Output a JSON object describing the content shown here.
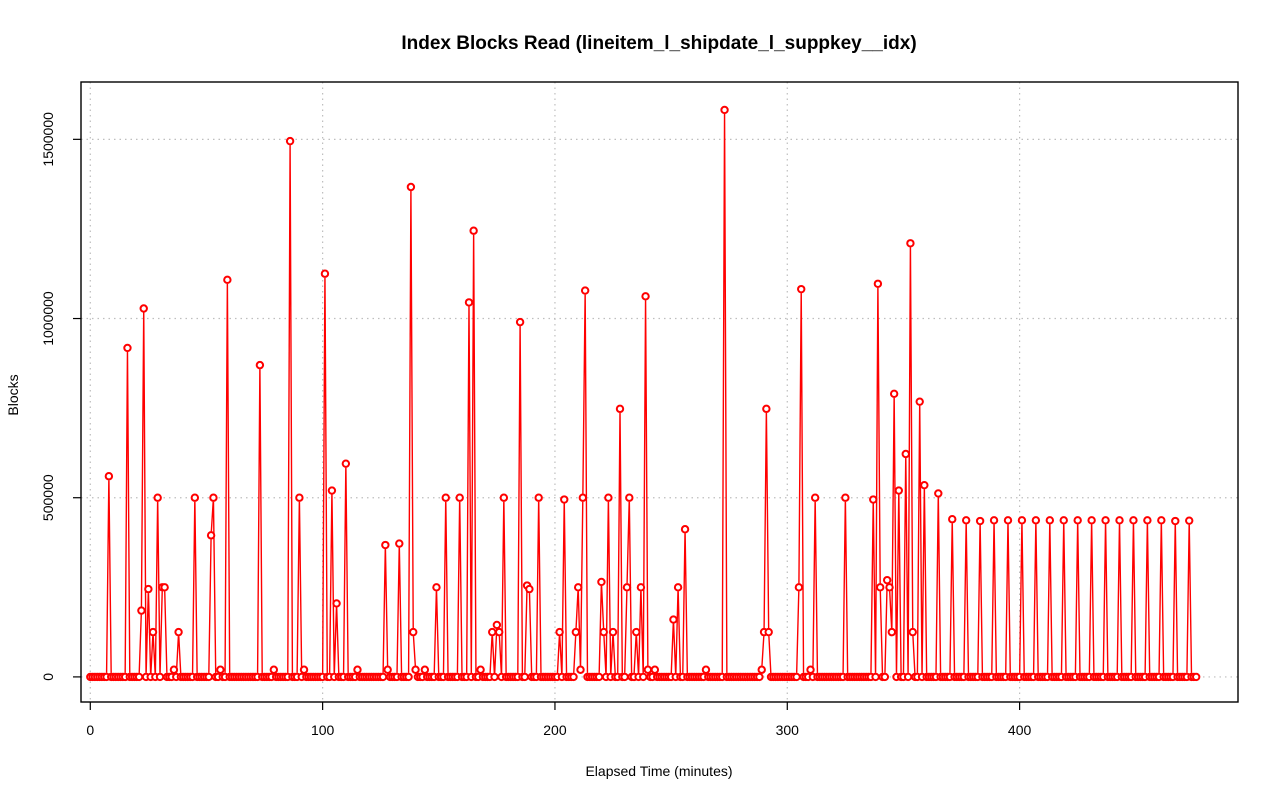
{
  "chart_data": {
    "type": "line",
    "title": "Index Blocks Read (lineitem_l_shipdate_l_suppkey__idx)",
    "xlabel": "Elapsed Time (minutes)",
    "ylabel": "Blocks",
    "xlim": [
      -4,
      494
    ],
    "ylim": [
      -70000,
      1660000
    ],
    "xticks": [
      0,
      100,
      200,
      300,
      400
    ],
    "yticks": [
      0,
      500000,
      1000000,
      1500000
    ],
    "grid": true,
    "line_color": "#ff0000",
    "peaks": [
      [
        8,
        560000
      ],
      [
        16,
        918000
      ],
      [
        22,
        185000
      ],
      [
        23,
        1028000
      ],
      [
        25,
        245000
      ],
      [
        27,
        125000
      ],
      [
        29,
        500000
      ],
      [
        31,
        250000
      ],
      [
        32,
        250000
      ],
      [
        36,
        20000
      ],
      [
        38,
        125000
      ],
      [
        45,
        500000
      ],
      [
        52,
        395000
      ],
      [
        53,
        500000
      ],
      [
        56,
        20000
      ],
      [
        59,
        1108000
      ],
      [
        73,
        870000
      ],
      [
        79,
        20000
      ],
      [
        86,
        1495000
      ],
      [
        90,
        500000
      ],
      [
        92,
        20000
      ],
      [
        101,
        1125000
      ],
      [
        104,
        520000
      ],
      [
        106,
        205000
      ],
      [
        110,
        595000
      ],
      [
        115,
        20000
      ],
      [
        127,
        368000
      ],
      [
        128,
        20000
      ],
      [
        133,
        372000
      ],
      [
        138,
        1367000
      ],
      [
        139,
        125000
      ],
      [
        140,
        20000
      ],
      [
        144,
        20000
      ],
      [
        149,
        250000
      ],
      [
        153,
        500000
      ],
      [
        159,
        500000
      ],
      [
        163,
        1045000
      ],
      [
        165,
        1245000
      ],
      [
        168,
        20000
      ],
      [
        173,
        125000
      ],
      [
        175,
        145000
      ],
      [
        176,
        125000
      ],
      [
        178,
        500000
      ],
      [
        185,
        990000
      ],
      [
        188,
        255000
      ],
      [
        189,
        245000
      ],
      [
        193,
        500000
      ],
      [
        202,
        125000
      ],
      [
        204,
        495000
      ],
      [
        209,
        125000
      ],
      [
        210,
        250000
      ],
      [
        211,
        20000
      ],
      [
        212,
        500000
      ],
      [
        213,
        1078000
      ],
      [
        220,
        265000
      ],
      [
        221,
        125000
      ],
      [
        223,
        500000
      ],
      [
        225,
        125000
      ],
      [
        228,
        748000
      ],
      [
        231,
        250000
      ],
      [
        232,
        500000
      ],
      [
        235,
        125000
      ],
      [
        237,
        250000
      ],
      [
        239,
        1062000
      ],
      [
        240,
        20000
      ],
      [
        243,
        20000
      ],
      [
        251,
        160000
      ],
      [
        253,
        250000
      ],
      [
        256,
        412000
      ],
      [
        265,
        20000
      ],
      [
        273,
        1582000
      ],
      [
        289,
        20000
      ],
      [
        290,
        125000
      ],
      [
        291,
        748000
      ],
      [
        292,
        125000
      ],
      [
        305,
        250000
      ],
      [
        306,
        1082000
      ],
      [
        310,
        20000
      ],
      [
        312,
        500000
      ],
      [
        325,
        500000
      ],
      [
        337,
        495000
      ],
      [
        339,
        1097000
      ],
      [
        340,
        250000
      ],
      [
        343,
        270000
      ],
      [
        344,
        250000
      ],
      [
        345,
        125000
      ],
      [
        346,
        790000
      ],
      [
        348,
        520000
      ],
      [
        351,
        622000
      ],
      [
        353,
        1210000
      ],
      [
        354,
        125000
      ],
      [
        357,
        768000
      ],
      [
        359,
        535000
      ],
      [
        365,
        512000
      ]
    ],
    "periodic_peaks": {
      "x_start": 371,
      "x_step": 6,
      "count": 18,
      "y_values": [
        440000,
        437000,
        435000,
        437000,
        437000,
        437000,
        437000,
        437000,
        437000,
        437000,
        437000,
        437000,
        437000,
        437000,
        437000,
        437000,
        435000,
        436000
      ]
    },
    "baseline": 0,
    "x_end": 476
  }
}
